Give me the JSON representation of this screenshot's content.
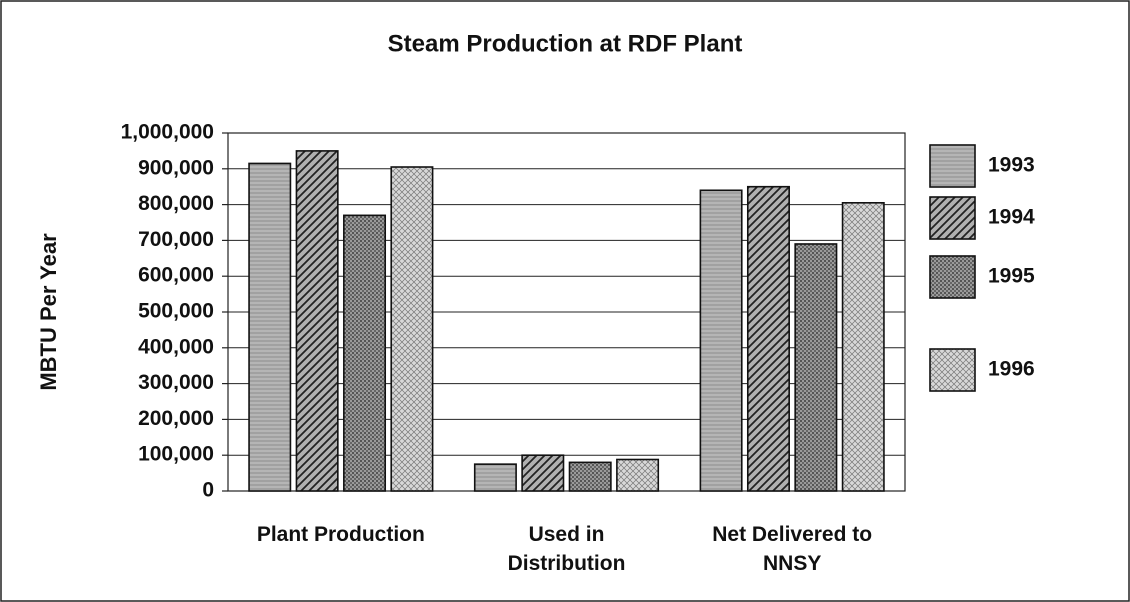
{
  "chart_data": {
    "type": "bar",
    "title": "Steam Production at RDF Plant",
    "y_label": "MBTU Per Year",
    "categories": [
      [
        "Plant Production"
      ],
      [
        "Used in",
        "Distribution"
      ],
      [
        "Net Delivered to",
        "NNSY"
      ]
    ],
    "series": [
      {
        "name": "1993",
        "color": "#c8c8c8",
        "values": [
          915000,
          75000,
          840000
        ]
      },
      {
        "name": "1994",
        "color": "#b0b0b0",
        "values": [
          950000,
          100000,
          850000
        ]
      },
      {
        "name": "1995",
        "color": "#9a9a9a",
        "values": [
          770000,
          80000,
          690000
        ]
      },
      {
        "name": "1996",
        "color": "#d8d8d8",
        "values": [
          905000,
          88000,
          805000
        ]
      }
    ],
    "ylim": [
      0,
      1000000
    ],
    "yticks": [
      0,
      {
        "value": 100000,
        "label": "100,000"
      },
      {
        "value": 200000,
        "label": "200,000"
      },
      {
        "value": 300000,
        "label": "300,000"
      },
      {
        "value": 400000,
        "label": "400,000"
      },
      {
        "value": 500000,
        "label": "500,000"
      },
      {
        "value": 600000,
        "label": "600,000"
      },
      {
        "value": 700000,
        "label": "700,000"
      },
      {
        "value": 800000,
        "label": "800,000"
      },
      {
        "value": 900000,
        "label": "900,000"
      },
      {
        "value": 1000000,
        "label": "1,000,000"
      }
    ],
    "grid": true,
    "legend": "right"
  }
}
